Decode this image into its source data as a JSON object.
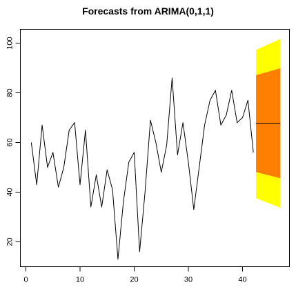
{
  "chart_data": {
    "type": "line",
    "title": "Forecasts from ARIMA(0,1,1)",
    "xlabel": "",
    "ylabel": "",
    "xlim": [
      0,
      48
    ],
    "ylim": [
      10,
      104
    ],
    "x_ticks": [
      0,
      10,
      20,
      30,
      40
    ],
    "y_ticks": [
      20,
      40,
      60,
      80,
      100
    ],
    "grid": false,
    "legend": "none",
    "series": [
      {
        "type": "line",
        "x": [
          1,
          2,
          3,
          4,
          5,
          6,
          7,
          8,
          9,
          10,
          11,
          12,
          13,
          14,
          15,
          16,
          17,
          18,
          19,
          20,
          21,
          22,
          23,
          24,
          25,
          26,
          27,
          28,
          29,
          30,
          31,
          32,
          33,
          34,
          35,
          36,
          37,
          38,
          39,
          40,
          41,
          42
        ],
        "values": [
          60,
          43,
          67,
          50,
          56,
          42,
          50,
          65,
          68,
          43,
          65,
          34,
          47,
          34,
          49,
          41,
          13,
          36,
          52,
          56,
          16,
          40,
          69,
          60,
          48,
          59,
          86,
          55,
          68,
          52,
          33,
          50,
          67,
          77,
          81,
          67,
          71,
          81,
          68,
          70,
          77,
          56
        ],
        "color": "#000000"
      },
      {
        "type": "point_forecast",
        "x": [
          42.5,
          47
        ],
        "values": [
          67.7,
          67.7
        ],
        "color": "#000000"
      }
    ],
    "forecast_bands": [
      {
        "level": "95%",
        "x": [
          42.5,
          47
        ],
        "lower": [
          37.6,
          33.7
        ],
        "upper": [
          97.3,
          101.7
        ],
        "color": "#ffff00"
      },
      {
        "level": "80%",
        "x": [
          42.5,
          47
        ],
        "lower": [
          48.1,
          45.6
        ],
        "upper": [
          87.1,
          89.9
        ],
        "color": "#ff7f00"
      }
    ]
  }
}
